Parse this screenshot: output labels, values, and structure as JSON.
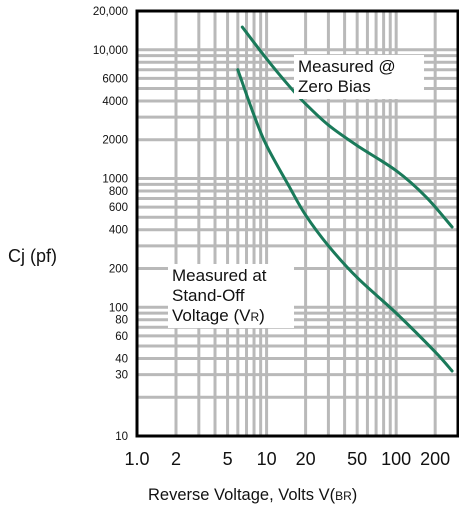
{
  "chart_data": {
    "type": "line",
    "xscale": "log",
    "yscale": "log",
    "xlim": [
      1,
      300
    ],
    "ylim": [
      10,
      20000
    ],
    "grid": true,
    "xlabel": {
      "main": "Reverse Voltage, Volts V(",
      "sub": "BR",
      "close": ")"
    },
    "ylabel": "Cj (pf)",
    "xticks": [
      {
        "v": 1,
        "label": "1.0"
      },
      {
        "v": 2,
        "label": "2"
      },
      {
        "v": 5,
        "label": "5"
      },
      {
        "v": 10,
        "label": "10"
      },
      {
        "v": 20,
        "label": "20"
      },
      {
        "v": 50,
        "label": "50"
      },
      {
        "v": 100,
        "label": "100"
      },
      {
        "v": 200,
        "label": "200"
      }
    ],
    "yticks": [
      {
        "v": 10,
        "label": "10"
      },
      {
        "v": 30,
        "label": "30"
      },
      {
        "v": 40,
        "label": "40"
      },
      {
        "v": 60,
        "label": "60"
      },
      {
        "v": 80,
        "label": "80"
      },
      {
        "v": 100,
        "label": "100"
      },
      {
        "v": 200,
        "label": "200"
      },
      {
        "v": 400,
        "label": "400"
      },
      {
        "v": 600,
        "label": "600"
      },
      {
        "v": 800,
        "label": "800"
      },
      {
        "v": 1000,
        "label": "1000"
      },
      {
        "v": 2000,
        "label": "2000"
      },
      {
        "v": 4000,
        "label": "4000"
      },
      {
        "v": 6000,
        "label": "6000"
      },
      {
        "v": 10000,
        "label": "10,000"
      },
      {
        "v": 20000,
        "label": "20,000"
      }
    ],
    "xgrid": [
      1,
      2,
      3,
      4,
      5,
      6,
      7,
      8,
      9,
      10,
      20,
      30,
      40,
      50,
      60,
      70,
      80,
      90,
      100,
      200,
      300
    ],
    "ygrid": [
      10,
      20,
      30,
      40,
      50,
      60,
      70,
      80,
      90,
      100,
      200,
      300,
      400,
      500,
      600,
      700,
      800,
      900,
      1000,
      2000,
      3000,
      4000,
      5000,
      6000,
      7000,
      8000,
      9000,
      10000,
      20000
    ],
    "series": [
      {
        "annotation": "Measured @ Zero Bias",
        "color": "#1a7a5a",
        "x": [
          6.5,
          10,
          15,
          20,
          30,
          50,
          100,
          170,
          270
        ],
        "y": [
          15000,
          8500,
          5200,
          3800,
          2600,
          1800,
          1150,
          720,
          420
        ]
      },
      {
        "annotation": "Measured at Stand-Off Voltage (VR)",
        "color": "#1a7a5a",
        "x": [
          6,
          8,
          10,
          15,
          20,
          30,
          50,
          100,
          200,
          270
        ],
        "y": [
          7000,
          3100,
          1800,
          860,
          520,
          300,
          170,
          90,
          45,
          32
        ]
      }
    ],
    "annotations": [
      {
        "lines": [
          "Measured @",
          "Zero Bias"
        ]
      },
      {
        "lines": [
          "Measured at",
          "Stand-Off",
          "Voltage (V"
        ],
        "sub": "R",
        "close": ")"
      }
    ]
  }
}
